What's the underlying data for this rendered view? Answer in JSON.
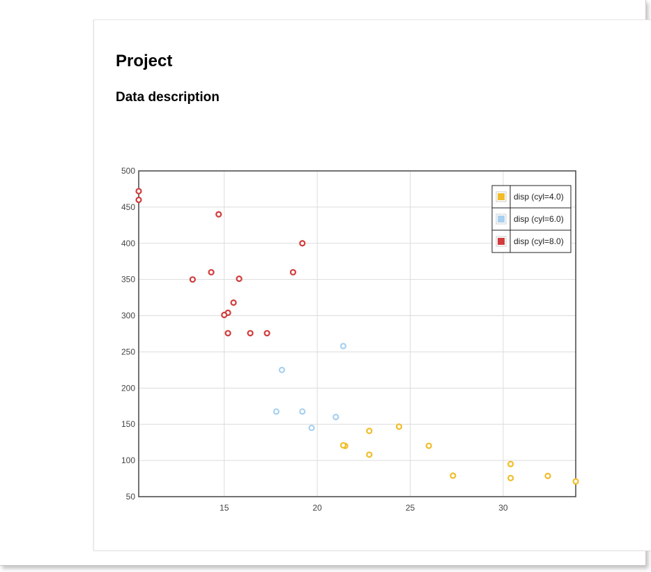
{
  "page": {
    "title": "Project",
    "section_title": "Data description"
  },
  "chart_data": {
    "type": "scatter",
    "xlim": [
      10.4,
      33.9
    ],
    "ylim": [
      50,
      500
    ],
    "x_ticks": [
      15,
      20,
      25,
      30
    ],
    "y_ticks": [
      50,
      100,
      150,
      200,
      250,
      300,
      350,
      400,
      450,
      500
    ],
    "grid": true,
    "legend_position": "top-right",
    "series": [
      {
        "name": "disp (cyl=4.0)",
        "color": "#f0bd2a",
        "points": [
          [
            22.8,
            108
          ],
          [
            24.4,
            146.7
          ],
          [
            22.8,
            140.8
          ],
          [
            32.4,
            78.7
          ],
          [
            30.4,
            75.7
          ],
          [
            33.9,
            71.1
          ],
          [
            21.5,
            120.1
          ],
          [
            27.3,
            79
          ],
          [
            26.0,
            120.3
          ],
          [
            30.4,
            95.1
          ],
          [
            21.4,
            121
          ]
        ]
      },
      {
        "name": "disp (cyl=6.0)",
        "color": "#a8d1f0",
        "points": [
          [
            21.0,
            160
          ],
          [
            21.0,
            160
          ],
          [
            21.4,
            258
          ],
          [
            18.1,
            225
          ],
          [
            19.2,
            167.6
          ],
          [
            17.8,
            167.6
          ],
          [
            19.7,
            145
          ]
        ]
      },
      {
        "name": "disp (cyl=8.0)",
        "color": "#d23c3c",
        "points": [
          [
            18.7,
            360
          ],
          [
            14.3,
            360
          ],
          [
            16.4,
            275.8
          ],
          [
            17.3,
            275.8
          ],
          [
            15.2,
            275.8
          ],
          [
            10.4,
            472
          ],
          [
            10.4,
            460
          ],
          [
            14.7,
            440
          ],
          [
            15.5,
            318
          ],
          [
            15.2,
            304
          ],
          [
            13.3,
            350
          ],
          [
            19.2,
            400
          ],
          [
            15.8,
            351
          ],
          [
            15.0,
            301
          ]
        ]
      }
    ]
  }
}
